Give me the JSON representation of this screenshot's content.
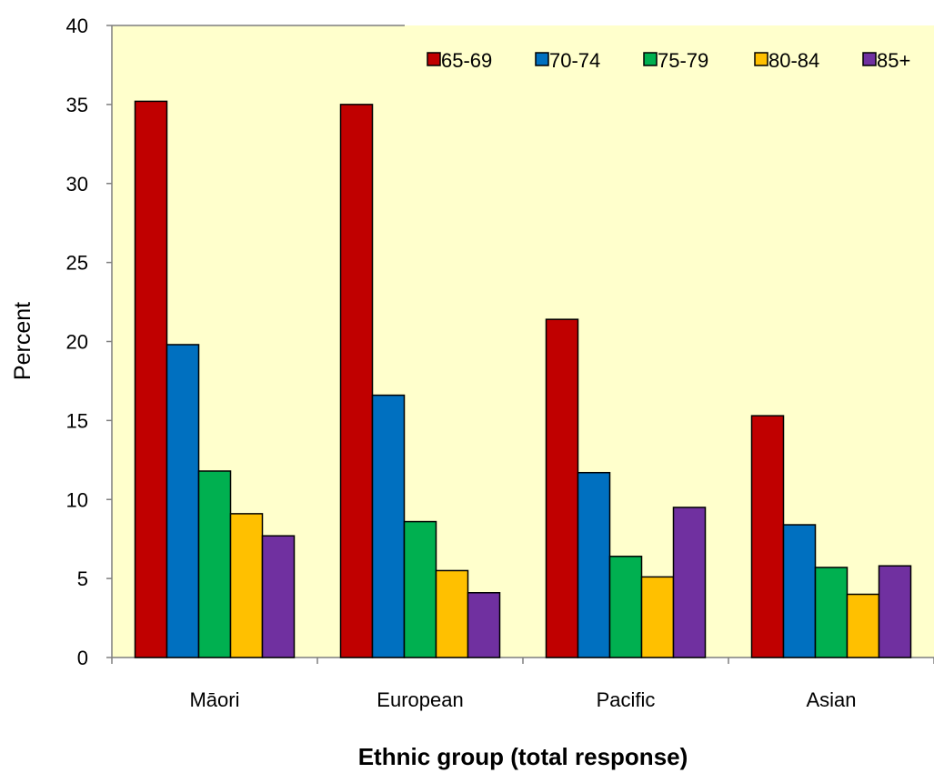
{
  "chart_data": {
    "type": "bar",
    "title": "",
    "xlabel": "Ethnic group (total response)",
    "ylabel": "Percent",
    "ylim": [
      0,
      40
    ],
    "yticks": [
      0,
      5,
      10,
      15,
      20,
      25,
      30,
      35,
      40
    ],
    "categories": [
      "Māori",
      "European",
      "Pacific",
      "Asian"
    ],
    "legend_position": "top-right",
    "grid": false,
    "plot_background": "#FFFFCC",
    "series": [
      {
        "name": "65-69",
        "color": "#C00000",
        "values": [
          35.2,
          35.0,
          21.4,
          15.3
        ]
      },
      {
        "name": "70-74",
        "color": "#0070C0",
        "values": [
          19.8,
          16.6,
          11.7,
          8.4
        ]
      },
      {
        "name": "75-79",
        "color": "#00B050",
        "values": [
          11.8,
          8.6,
          6.4,
          5.7
        ]
      },
      {
        "name": "80-84",
        "color": "#FFC000",
        "values": [
          9.1,
          5.5,
          5.1,
          4.0
        ]
      },
      {
        "name": "85+",
        "color": "#7030A0",
        "values": [
          7.7,
          4.1,
          9.5,
          5.8
        ]
      }
    ]
  }
}
